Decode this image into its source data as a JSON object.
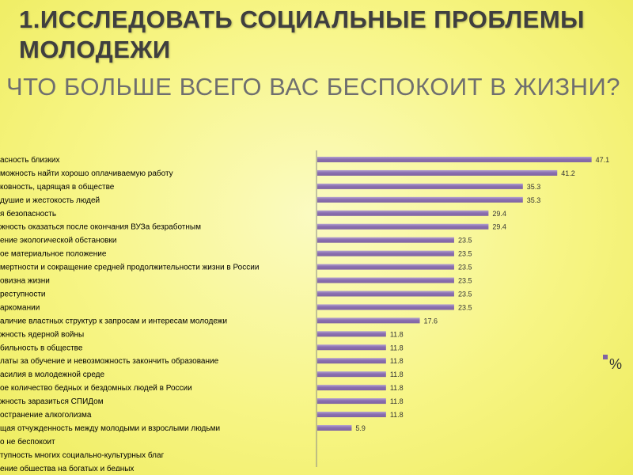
{
  "slide": {
    "title": "1.ИССЛЕДОВАТЬ СОЦИАЛЬНЫЕ ПРОБЛЕМЫ МОЛОДЕЖИ",
    "subtitle": "ЧТО БОЛЬШЕ ВСЕГО ВАС БЕСПОКОИТ В ЖИЗНИ?"
  },
  "chart_data": {
    "type": "bar",
    "orientation": "horizontal",
    "categories": [
      "асность близких",
      "можность найти хорошо оплачиваемую работу",
      "ковность, царящая в обществе",
      "душие и жестокость людей",
      "я безопасность",
      "жность оказаться после окончания ВУЗа безработным",
      "ение экологической обстановки",
      "ое материальное положение",
      "мертности и сокращение средней продолжительности жизни в России",
      "овизна жизни",
      "реступности",
      "аркомании",
      "аличие властных структур к запросам и интересам молодежи",
      "жность ядерной войны",
      "бильность в обществе",
      "латы за обучение и невозможность закончить образование",
      "асилия в молодежной среде",
      "ое количество бедных и бездомных людей в России",
      "жность заразиться СПИДом",
      "остранение алкоголизма",
      "щая отчужденность между молодыми и взрослыми людьми",
      "о не беспокоит",
      "тупность многих социально-культурных благ",
      "ение общества на богатых и бедных"
    ],
    "series": [
      {
        "name": "%",
        "values": [
          47.1,
          41.2,
          35.3,
          35.3,
          29.4,
          29.4,
          23.5,
          23.5,
          23.5,
          23.5,
          23.5,
          23.5,
          17.6,
          11.8,
          11.8,
          11.8,
          11.8,
          11.8,
          11.8,
          11.8,
          5.9,
          0,
          0,
          0
        ],
        "labels": [
          "47.1",
          "41.2",
          "35.3",
          "35.3",
          "29.4",
          "29.4",
          "23.5",
          "23.5",
          "23.5",
          "23.5",
          "23.5",
          "23.5",
          "17.6",
          "11.8",
          "11.8",
          "11.8",
          "11.8",
          "11.8",
          "11.8",
          "11.8",
          "5.9",
          "",
          "",
          ""
        ]
      }
    ],
    "xlim": [
      0,
      50
    ],
    "grid": false,
    "legend": {
      "position": "right",
      "entries": [
        "%"
      ]
    },
    "colors": {
      "bar": "#8064a2",
      "bar_highlight": "#b4a2d0",
      "axis": "#888888"
    }
  }
}
